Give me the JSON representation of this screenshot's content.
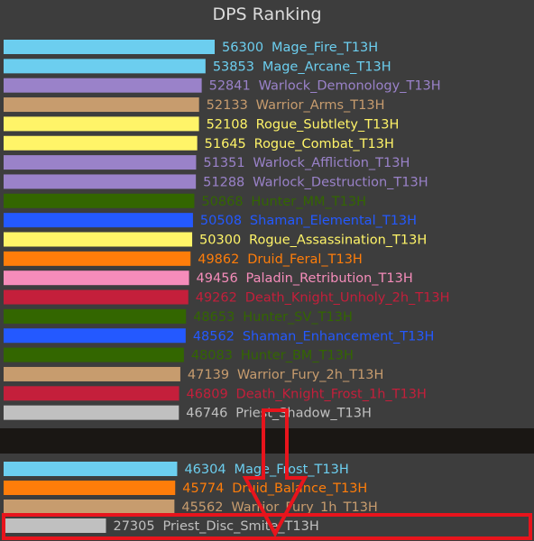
{
  "chart_data": [
    {
      "type": "bar",
      "orientation": "horizontal",
      "title": "DPS Ranking",
      "bar_scale_max": 56300,
      "entries": [
        {
          "value": 56300,
          "label": "Mage_Fire_T13H",
          "color": "#6cceef"
        },
        {
          "value": 53853,
          "label": "Mage_Arcane_T13H",
          "color": "#6cceef"
        },
        {
          "value": 52841,
          "label": "Warlock_Demonology_T13H",
          "color": "#9a82c9"
        },
        {
          "value": 52133,
          "label": "Warrior_Arms_T13H",
          "color": "#c79c6e"
        },
        {
          "value": 52108,
          "label": "Rogue_Subtlety_T13H",
          "color": "#fff468"
        },
        {
          "value": 51645,
          "label": "Rogue_Combat_T13H",
          "color": "#fff468"
        },
        {
          "value": 51351,
          "label": "Warlock_Affliction_T13H",
          "color": "#9a82c9"
        },
        {
          "value": 51288,
          "label": "Warlock_Destruction_T13H",
          "color": "#9a82c9"
        },
        {
          "value": 50868,
          "label": "Hunter_MM_T13H",
          "color": "#336600"
        },
        {
          "value": 50508,
          "label": "Shaman_Elemental_T13H",
          "color": "#2459ff"
        },
        {
          "value": 50300,
          "label": "Rogue_Assassination_T13H",
          "color": "#fff468"
        },
        {
          "value": 49862,
          "label": "Druid_Feral_T13H",
          "color": "#ff7d0a"
        },
        {
          "value": 49456,
          "label": "Paladin_Retribution_T13H",
          "color": "#f58cba"
        },
        {
          "value": 49262,
          "label": "Death_Knight_Unholy_2h_T13H",
          "color": "#c41f3b"
        },
        {
          "value": 48653,
          "label": "Hunter_SV_T13H",
          "color": "#336600"
        },
        {
          "value": 48562,
          "label": "Shaman_Enhancement_T13H",
          "color": "#2459ff"
        },
        {
          "value": 48083,
          "label": "Hunter_BM_T13H",
          "color": "#336600"
        },
        {
          "value": 47139,
          "label": "Warrior_Fury_2h_T13H",
          "color": "#c79c6e"
        },
        {
          "value": 46809,
          "label": "Death_Knight_Frost_1h_T13H",
          "color": "#c41f3b"
        },
        {
          "value": 46746,
          "label": "Priest_Shadow_T13H",
          "color": "#c0c0c0"
        }
      ]
    },
    {
      "type": "bar",
      "orientation": "horizontal",
      "bar_scale_max": 56300,
      "entries": [
        {
          "value": 46304,
          "label": "Mage_Frost_T13H",
          "color": "#6cceef"
        },
        {
          "value": 45774,
          "label": "Druid_Balance_T13H",
          "color": "#ff7d0a"
        },
        {
          "value": 45562,
          "label": "Warrior_Fury_1h_T13H",
          "color": "#c79c6e"
        },
        {
          "value": 27305,
          "label": "Priest_Disc_Smite_T13H",
          "color": "#c0c0c0",
          "highlighted": true
        }
      ]
    }
  ],
  "annotation": {
    "color": "#e8141c",
    "shape": "down-arrow"
  }
}
